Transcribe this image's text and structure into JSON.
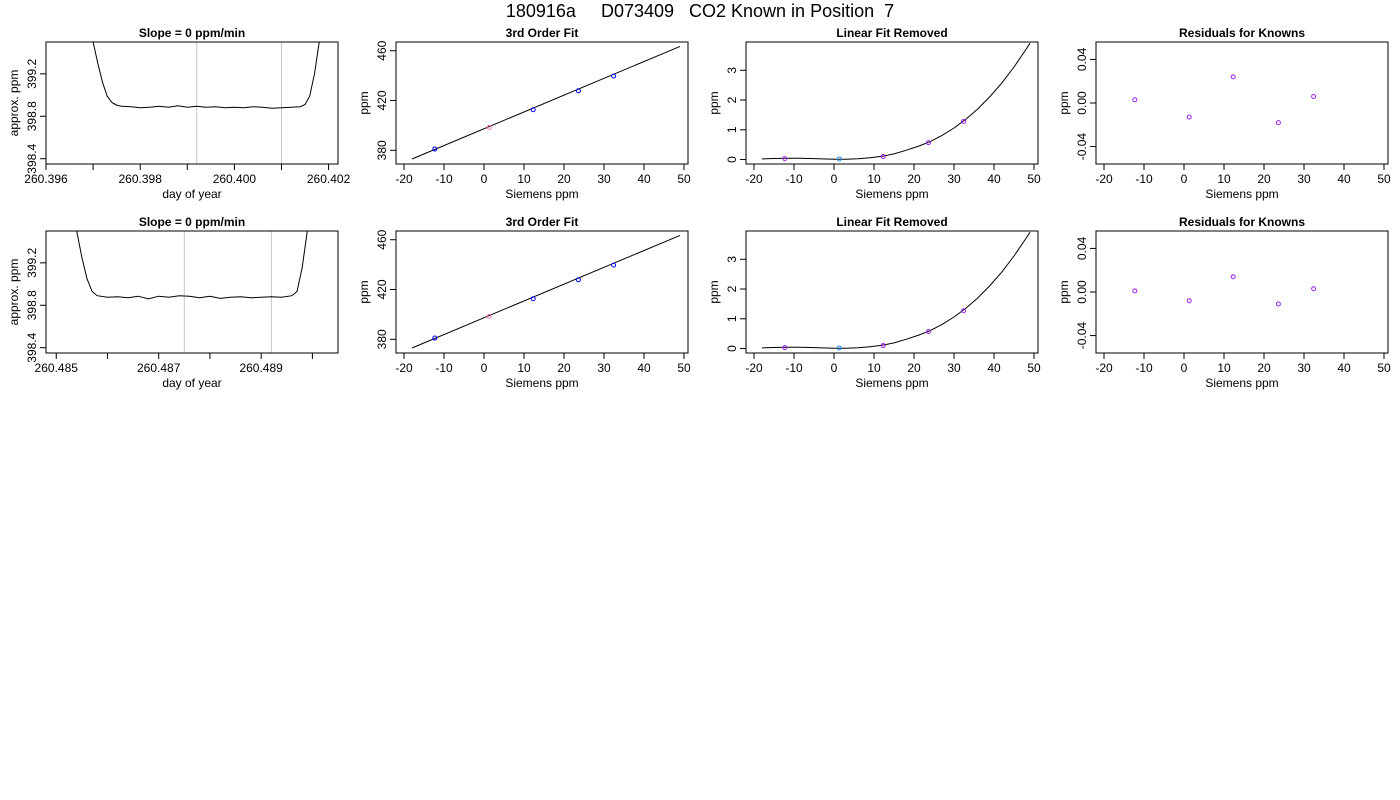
{
  "title": "180916a     D073409   CO2 Known in Position  7",
  "colors": {
    "line": "#000000",
    "vline": "#c8c8c8",
    "point": "#0000ff",
    "point_alt": "#a020f0",
    "point_mid": "#1e90ff",
    "spike": "#ff4040"
  },
  "chart_data": [
    {
      "type": "line",
      "title": "Slope =  0  ppm/min",
      "xlabel": "day of year",
      "ylabel": "approx. ppm",
      "xlim": [
        260.396,
        260.4022
      ],
      "ylim": [
        398.35,
        399.5
      ],
      "xticks": [
        260.396,
        260.397,
        260.398,
        260.399,
        260.4,
        260.401,
        260.402
      ],
      "xtick_labels": [
        "260.396",
        "",
        "260.398",
        "",
        "260.400",
        "",
        "260.402"
      ],
      "yticks": [
        398.4,
        398.8,
        399.2
      ],
      "ytick_labels": [
        "398.4",
        "398.8",
        "399.2"
      ],
      "vlines": [
        260.3992,
        260.401
      ],
      "series": [
        {
          "x": [
            260.397,
            260.3971,
            260.3972,
            260.3973,
            260.3974,
            260.3975,
            260.3976,
            260.3978,
            260.398,
            260.3982,
            260.3984,
            260.3986,
            260.3988,
            260.399,
            260.3992,
            260.3994,
            260.3996,
            260.3998,
            260.4,
            260.4002,
            260.4004,
            260.4006,
            260.4008,
            260.401,
            260.4012,
            260.4014,
            260.4015,
            260.4016,
            260.4017,
            260.4018
          ],
          "y": [
            399.5,
            399.3,
            399.12,
            398.99,
            398.93,
            398.905,
            398.895,
            398.89,
            398.88,
            398.885,
            398.895,
            398.885,
            398.9,
            398.885,
            398.895,
            398.885,
            398.89,
            398.88,
            398.885,
            398.88,
            398.89,
            398.885,
            398.875,
            398.88,
            398.885,
            398.89,
            398.91,
            398.99,
            399.2,
            399.5
          ]
        }
      ]
    },
    {
      "type": "scatter",
      "title": "3rd Order Fit",
      "xlabel": "Siemens ppm",
      "ylabel": "ppm",
      "xlim": [
        -22,
        51
      ],
      "ylim": [
        369,
        467
      ],
      "xticks": [
        -20,
        -10,
        0,
        10,
        20,
        30,
        40,
        50
      ],
      "yticks": [
        380,
        420,
        460
      ],
      "points": [
        {
          "x": -12.3,
          "y": 381.0,
          "color": "#0000ff"
        },
        {
          "x": 1.3,
          "y": 398.4,
          "color": "#ff69b4"
        },
        {
          "x": 12.3,
          "y": 412.6,
          "color": "#0000ff"
        },
        {
          "x": 23.6,
          "y": 427.8,
          "color": "#0000ff"
        },
        {
          "x": 32.4,
          "y": 439.6,
          "color": "#0000ff"
        }
      ],
      "fit": {
        "x": [
          -18,
          49
        ],
        "y": [
          373.0,
          463.5
        ]
      }
    },
    {
      "type": "scatter",
      "title": "Linear Fit Removed",
      "xlabel": "Siemens ppm",
      "ylabel": "ppm",
      "xlim": [
        -22,
        51
      ],
      "ylim": [
        -0.15,
        3.95
      ],
      "xticks": [
        -20,
        -10,
        0,
        10,
        20,
        30,
        40,
        50
      ],
      "yticks": [
        0,
        1,
        2,
        3
      ],
      "points": [
        {
          "x": -12.3,
          "y": 0.03,
          "color": "#a020f0"
        },
        {
          "x": 1.3,
          "y": 0.02,
          "color": "#1e90ff"
        },
        {
          "x": 12.3,
          "y": 0.1,
          "color": "#a020f0"
        },
        {
          "x": 23.6,
          "y": 0.57,
          "color": "#a020f0"
        },
        {
          "x": 32.4,
          "y": 1.28,
          "color": "#a020f0"
        }
      ],
      "curve": {
        "x": [
          -18,
          -15,
          -12,
          -9,
          -6,
          -3,
          0,
          3,
          6,
          9,
          12,
          15,
          18,
          21,
          24,
          27,
          30,
          33,
          36,
          39,
          42,
          45,
          48,
          49
        ],
        "y": [
          0.02,
          0.035,
          0.045,
          0.045,
          0.035,
          0.02,
          0.01,
          0.01,
          0.025,
          0.06,
          0.11,
          0.19,
          0.31,
          0.44,
          0.6,
          0.81,
          1.06,
          1.36,
          1.71,
          2.12,
          2.58,
          3.11,
          3.7,
          3.91
        ]
      }
    },
    {
      "type": "scatter",
      "title": "Residuals for Knowns",
      "xlabel": "Siemens ppm",
      "ylabel": "ppm",
      "xlim": [
        -22,
        51
      ],
      "ylim": [
        -0.056,
        0.056
      ],
      "xticks": [
        -20,
        -10,
        0,
        10,
        20,
        30,
        40,
        50
      ],
      "yticks": [
        -0.04,
        0.0,
        0.04
      ],
      "ytick_labels": [
        "-0.04",
        "0.00",
        "0.04"
      ],
      "points": [
        {
          "x": -12.3,
          "y": 0.003,
          "color": "#a020f0"
        },
        {
          "x": 1.3,
          "y": -0.013,
          "color": "#a020f0"
        },
        {
          "x": 12.3,
          "y": 0.024,
          "color": "#a020f0"
        },
        {
          "x": 23.6,
          "y": -0.018,
          "color": "#a020f0"
        },
        {
          "x": 32.4,
          "y": 0.006,
          "color": "#a020f0"
        }
      ]
    },
    {
      "type": "line",
      "title": "Slope =  0  ppm/min",
      "xlabel": "day of year",
      "ylabel": "approx. ppm",
      "xlim": [
        260.4848,
        260.4905
      ],
      "ylim": [
        398.35,
        399.5
      ],
      "xticks": [
        260.485,
        260.486,
        260.487,
        260.488,
        260.489,
        260.49
      ],
      "xtick_labels": [
        "260.485",
        "",
        "260.487",
        "",
        "260.489",
        ""
      ],
      "yticks": [
        398.4,
        398.8,
        399.2
      ],
      "ytick_labels": [
        "398.4",
        "398.8",
        "399.2"
      ],
      "vlines": [
        260.4875,
        260.4892
      ],
      "series": [
        {
          "x": [
            260.4854,
            260.4855,
            260.4856,
            260.4857,
            260.4858,
            260.486,
            260.4862,
            260.4864,
            260.4866,
            260.4868,
            260.487,
            260.4872,
            260.4874,
            260.4876,
            260.4878,
            260.488,
            260.4882,
            260.4884,
            260.4886,
            260.4888,
            260.489,
            260.4892,
            260.4894,
            260.4896,
            260.4897,
            260.4898,
            260.4899
          ],
          "y": [
            399.5,
            399.25,
            399.05,
            398.93,
            398.89,
            398.875,
            398.88,
            398.87,
            398.885,
            398.86,
            398.885,
            398.875,
            398.89,
            398.885,
            398.87,
            398.885,
            398.865,
            398.875,
            398.88,
            398.87,
            398.875,
            398.88,
            398.875,
            398.89,
            398.93,
            399.15,
            399.5
          ]
        }
      ]
    },
    {
      "type": "scatter",
      "title": "3rd Order Fit",
      "xlabel": "Siemens ppm",
      "ylabel": "ppm",
      "xlim": [
        -22,
        51
      ],
      "ylim": [
        369,
        467
      ],
      "xticks": [
        -20,
        -10,
        0,
        10,
        20,
        30,
        40,
        50
      ],
      "yticks": [
        380,
        420,
        460
      ],
      "points": [
        {
          "x": -12.3,
          "y": 381.0,
          "color": "#0000ff"
        },
        {
          "x": 1.3,
          "y": 398.4,
          "color": "#ff69b4"
        },
        {
          "x": 12.3,
          "y": 412.6,
          "color": "#0000ff"
        },
        {
          "x": 23.6,
          "y": 427.8,
          "color": "#0000ff"
        },
        {
          "x": 32.4,
          "y": 439.6,
          "color": "#0000ff"
        }
      ],
      "fit": {
        "x": [
          -18,
          49
        ],
        "y": [
          373.0,
          463.5
        ]
      }
    },
    {
      "type": "scatter",
      "title": "Linear Fit Removed",
      "xlabel": "Siemens ppm",
      "ylabel": "ppm",
      "xlim": [
        -22,
        51
      ],
      "ylim": [
        -0.15,
        3.95
      ],
      "xticks": [
        -20,
        -10,
        0,
        10,
        20,
        30,
        40,
        50
      ],
      "yticks": [
        0,
        1,
        2,
        3
      ],
      "points": [
        {
          "x": -12.3,
          "y": 0.03,
          "color": "#a020f0"
        },
        {
          "x": 1.3,
          "y": 0.02,
          "color": "#1e90ff"
        },
        {
          "x": 12.3,
          "y": 0.1,
          "color": "#a020f0"
        },
        {
          "x": 23.6,
          "y": 0.57,
          "color": "#a020f0"
        },
        {
          "x": 32.4,
          "y": 1.27,
          "color": "#a020f0"
        }
      ],
      "curve": {
        "x": [
          -18,
          -15,
          -12,
          -9,
          -6,
          -3,
          0,
          3,
          6,
          9,
          12,
          15,
          18,
          21,
          24,
          27,
          30,
          33,
          36,
          39,
          42,
          45,
          48,
          49
        ],
        "y": [
          0.02,
          0.035,
          0.045,
          0.045,
          0.035,
          0.02,
          0.01,
          0.01,
          0.025,
          0.06,
          0.11,
          0.19,
          0.31,
          0.44,
          0.6,
          0.81,
          1.06,
          1.36,
          1.71,
          2.12,
          2.58,
          3.11,
          3.7,
          3.91
        ]
      }
    },
    {
      "type": "scatter",
      "title": "Residuals for Knowns",
      "xlabel": "Siemens ppm",
      "ylabel": "ppm",
      "xlim": [
        -22,
        51
      ],
      "ylim": [
        -0.056,
        0.056
      ],
      "xticks": [
        -20,
        -10,
        0,
        10,
        20,
        30,
        40,
        50
      ],
      "yticks": [
        -0.04,
        0.0,
        0.04
      ],
      "ytick_labels": [
        "-0.04",
        "0.00",
        "0.04"
      ],
      "points": [
        {
          "x": -12.3,
          "y": 0.001,
          "color": "#a020f0"
        },
        {
          "x": 1.3,
          "y": -0.008,
          "color": "#a020f0"
        },
        {
          "x": 12.3,
          "y": 0.014,
          "color": "#a020f0"
        },
        {
          "x": 23.6,
          "y": -0.011,
          "color": "#a020f0"
        },
        {
          "x": 32.4,
          "y": 0.003,
          "color": "#a020f0"
        }
      ]
    }
  ]
}
